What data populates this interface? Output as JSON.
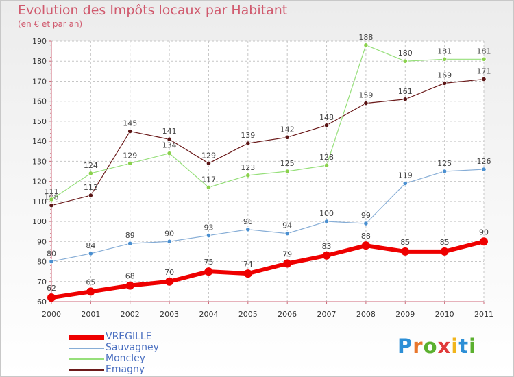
{
  "title": "Evolution des Impôts locaux par Habitant",
  "subtitle": "(en € et par an)",
  "logo": {
    "text": "Proxiti",
    "letters": [
      "P",
      "r",
      "o",
      "x",
      "i",
      "t",
      "i"
    ],
    "colors": [
      "#2d8fd6",
      "#e8762b",
      "#5bb02f",
      "#e03a3a",
      "#f1b51c",
      "#2d8fd6",
      "#5bb02f"
    ]
  },
  "chart_data": {
    "type": "line",
    "title": "Evolution des Impôts locaux par Habitant",
    "subtitle": "(en € et par an)",
    "x": [
      "2000",
      "2001",
      "2002",
      "2003",
      "2004",
      "2005",
      "2006",
      "2007",
      "2008",
      "2009",
      "2010",
      "2011"
    ],
    "ylim": [
      60,
      190
    ],
    "yticks": [
      60,
      70,
      80,
      90,
      100,
      110,
      120,
      130,
      140,
      150,
      160,
      170,
      180,
      190
    ],
    "grid": true,
    "legend_position": "bottom-left",
    "series": [
      {
        "name": "Emagny",
        "color": "#6b1a1a",
        "point_color": "#5a1515",
        "width": 1.2,
        "marker": 3.2,
        "values": [
          108,
          113,
          145,
          141,
          129,
          139,
          142,
          148,
          159,
          161,
          169,
          171
        ]
      },
      {
        "name": "Moncley",
        "color": "#96df7a",
        "point_color": "#8ad14c",
        "width": 1.2,
        "marker": 3.2,
        "values": [
          111,
          124,
          129,
          134,
          117,
          123,
          125,
          128,
          188,
          180,
          181,
          181
        ]
      },
      {
        "name": "Sauvagney",
        "color": "#86add6",
        "point_color": "#4a8fd0",
        "width": 1.2,
        "marker": 3.2,
        "values": [
          80,
          84,
          89,
          90,
          93,
          96,
          94,
          100,
          99,
          119,
          125,
          126
        ]
      },
      {
        "name": "VREGILLE",
        "color": "#ee0000",
        "point_color": "#ee0000",
        "width": 6,
        "marker": 6,
        "values": [
          62,
          65,
          68,
          70,
          75,
          74,
          79,
          83,
          88,
          85,
          85,
          90
        ]
      }
    ],
    "legend_order": [
      "VREGILLE",
      "Sauvagney",
      "Moncley",
      "Emagny"
    ]
  }
}
